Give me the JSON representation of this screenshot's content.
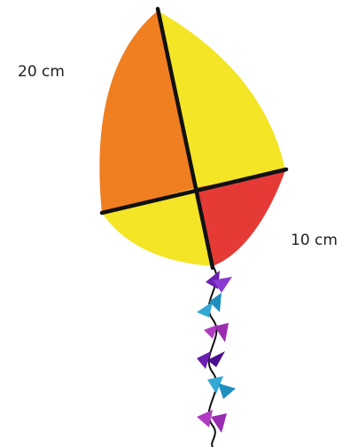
{
  "labels": {
    "long_side": "20 cm",
    "short_side": "10 cm"
  }
}
